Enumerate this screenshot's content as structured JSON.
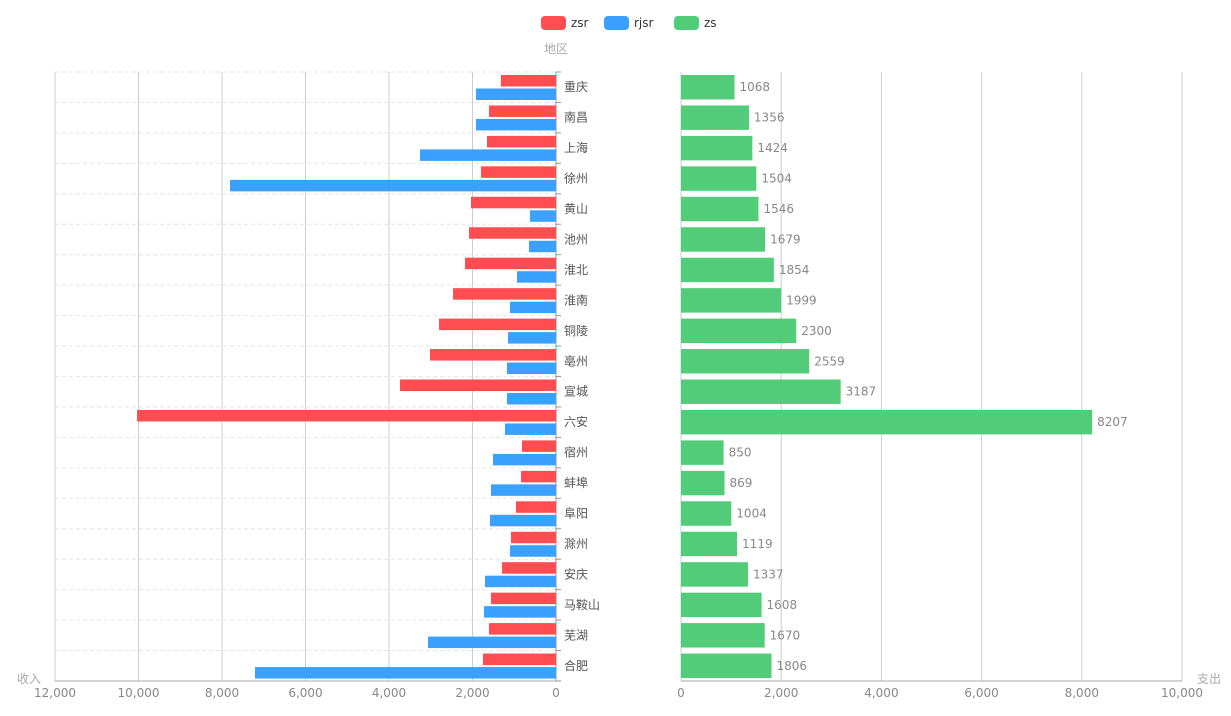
{
  "chart_data": [
    {
      "type": "bar",
      "orientation": "horizontal",
      "x_direction": "reversed",
      "categories": [
        "重庆",
        "南昌",
        "上海",
        "徐州",
        "黄山",
        "池州",
        "淮北",
        "淮南",
        "铜陵",
        "亳州",
        "宣城",
        "六安",
        "宿州",
        "蚌埠",
        "阜阳",
        "滁州",
        "安庆",
        "马鞍山",
        "芜湖",
        "合肥"
      ],
      "series": [
        {
          "name": "zsr",
          "color": "#ff4d52",
          "values": [
            1320,
            1605,
            1653,
            1796,
            2036,
            2084,
            2180,
            2467,
            2802,
            3018,
            3737,
            10036,
            814,
            838,
            958,
            1078,
            1293,
            1557,
            1605,
            1749
          ]
        },
        {
          "name": "rjsr",
          "color": "#3ba1ff",
          "values": [
            1916,
            1916,
            3257,
            7808,
            623,
            647,
            934,
            1102,
            1150,
            1174,
            1174,
            1222,
            1509,
            1557,
            1581,
            1102,
            1701,
            1725,
            3066,
            7210
          ]
        }
      ],
      "xlabel": "收入",
      "ylabel": "地区",
      "xlim": [
        0,
        12000
      ],
      "xticks": [
        "12,000",
        "10,000",
        "8,000",
        "6,000",
        "4,000",
        "2,000",
        "0"
      ]
    },
    {
      "type": "bar",
      "orientation": "horizontal",
      "categories": [
        "重庆",
        "南昌",
        "上海",
        "徐州",
        "黄山",
        "池州",
        "淮北",
        "淮南",
        "铜陵",
        "亳州",
        "宣城",
        "六安",
        "宿州",
        "蚌埠",
        "阜阳",
        "滁州",
        "安庆",
        "马鞍山",
        "芜湖",
        "合肥"
      ],
      "series": [
        {
          "name": "zs",
          "color": "#52cc78",
          "values": [
            1068,
            1356,
            1424,
            1504,
            1546,
            1679,
            1854,
            1999,
            2300,
            2559,
            3187,
            8207,
            850,
            869,
            1004,
            1119,
            1337,
            1608,
            1670,
            1806
          ]
        }
      ],
      "xlabel": "支出",
      "xlim": [
        0,
        10000
      ],
      "xticks": [
        "0",
        "2,000",
        "4,000",
        "6,000",
        "8,000",
        "10,000"
      ]
    }
  ],
  "legend": [
    {
      "name": "zsr",
      "color": "#ff4d52"
    },
    {
      "name": "rjsr",
      "color": "#3ba1ff"
    },
    {
      "name": "zs",
      "color": "#52cc78"
    }
  ]
}
